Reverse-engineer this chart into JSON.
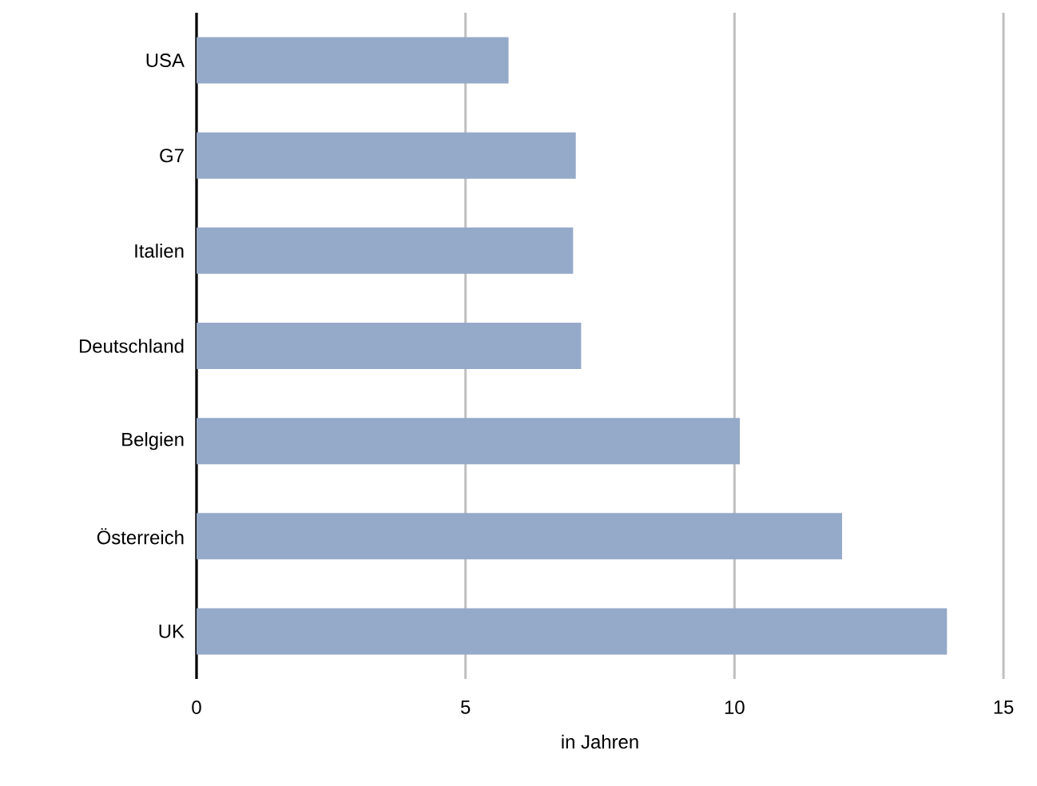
{
  "chart_data": {
    "type": "bar",
    "orientation": "horizontal",
    "xlabel": "in Jahren",
    "categories": [
      "USA",
      "G7",
      "Italien",
      "Deutschland",
      "Belgien",
      "Österreich",
      "UK"
    ],
    "values": [
      5.8,
      7.05,
      7.0,
      7.15,
      10.1,
      12.0,
      13.95
    ],
    "color": "#95a9c9",
    "xlim": [
      0,
      15
    ],
    "xticks": [
      0,
      5,
      10,
      15
    ],
    "grid": "x"
  }
}
